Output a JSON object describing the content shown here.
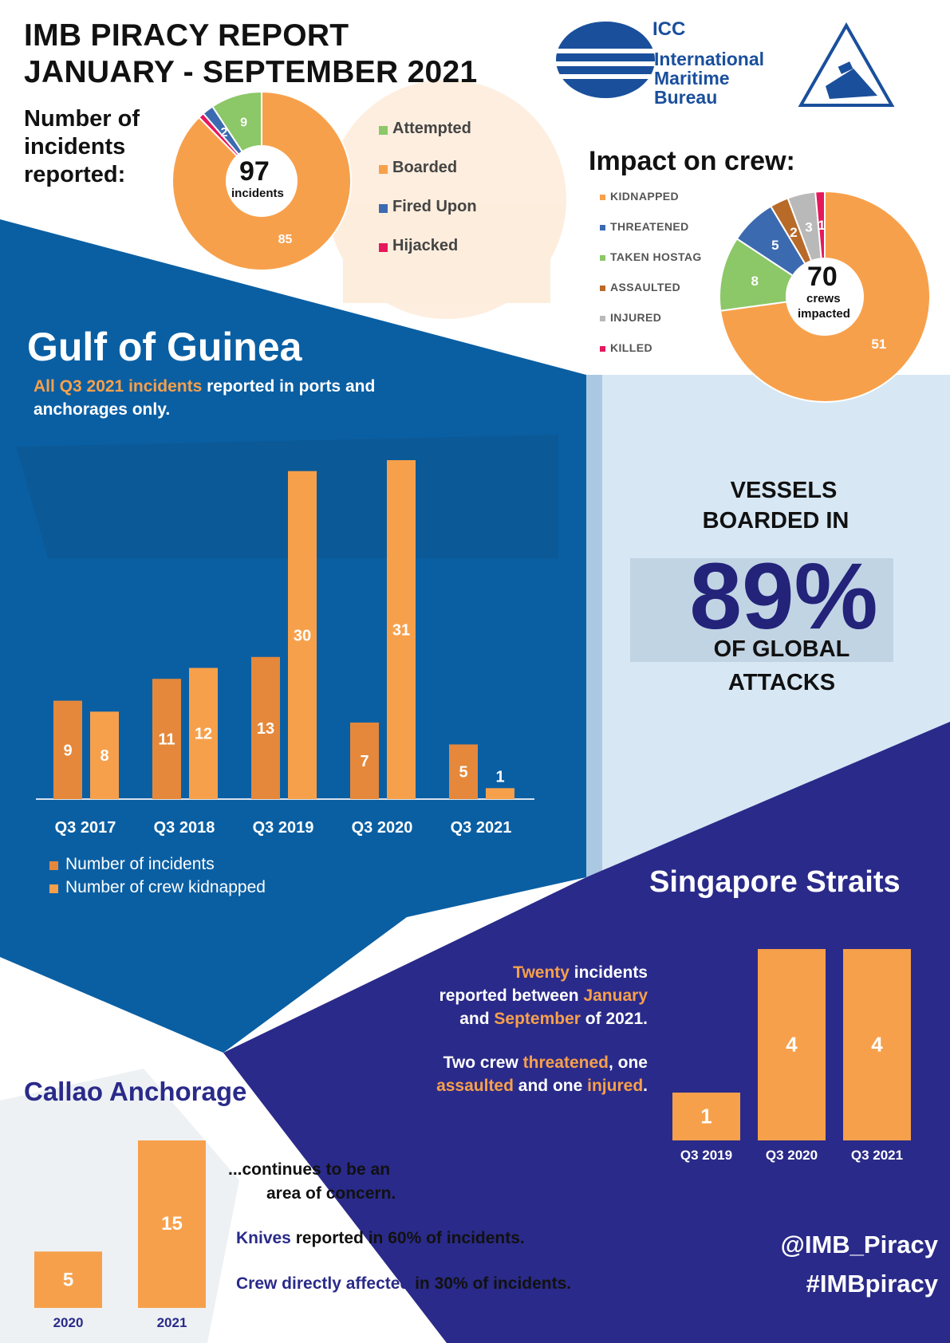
{
  "header": {
    "title_line1": "IMB PIRACY REPORT",
    "title_line2": "JANUARY - SEPTEMBER 2021",
    "incidents_label": "Number of incidents reported:"
  },
  "logo": {
    "org_short": "ICC",
    "org_line1": "International",
    "org_line2": "Maritime",
    "org_line3": "Bureau"
  },
  "colors": {
    "orange": "#f7a04b",
    "dark_orange": "#e5883b",
    "blue": "#0a5fa3",
    "navy": "#2a2a8a",
    "green": "#8cc768",
    "red": "#e6185c",
    "slate_blue": "#3c6ab1",
    "brown": "#b86a29",
    "grey": "#b9b9b9"
  },
  "chart_data": [
    {
      "type": "pie",
      "categories": [
        "Attempted",
        "Boarded",
        "Fired Upon",
        "Hijacked"
      ],
      "values": [
        9,
        85,
        2,
        1
      ],
      "value_labels": [
        "9",
        "85",
        "2",
        ""
      ],
      "center_value": "97",
      "center_label": "incidents",
      "legend": "right"
    },
    {
      "type": "pie",
      "title": "Impact on crew:",
      "categories": [
        "KIDNAPPED",
        "THREATENED",
        "TAKEN HOSTAGE",
        "ASSAULTED",
        "INJURED",
        "KILLED"
      ],
      "legend_text": [
        "KIDNAPPED",
        "THREATENED",
        "TAKEN HOSTAG",
        "ASSAULTED",
        "INJURED",
        "KILLED"
      ],
      "values": [
        51,
        5,
        8,
        2,
        3,
        1
      ],
      "center_value": "70",
      "center_label_line1": "crews",
      "center_label_line2": "impacted",
      "legend": "left"
    },
    {
      "type": "bar",
      "title": "Gulf of Guinea",
      "categories": [
        "Q3 2017",
        "Q3 2018",
        "Q3 2019",
        "Q3 2020",
        "Q3 2021"
      ],
      "series": [
        {
          "name": "Number of incidents",
          "values": [
            9,
            11,
            13,
            7,
            5
          ]
        },
        {
          "name": "Number of crew kidnapped",
          "values": [
            8,
            12,
            30,
            31,
            1
          ]
        }
      ],
      "ylim": [
        0,
        31
      ],
      "grid": false,
      "legend": "bottom-left"
    },
    {
      "type": "bar",
      "title": "Singapore Straits",
      "categories": [
        "Q3 2019",
        "Q3 2020",
        "Q3 2021"
      ],
      "values": [
        1,
        4,
        4
      ],
      "ylim": [
        0,
        4
      ]
    },
    {
      "type": "bar",
      "title": "Callao Anchorage",
      "categories": [
        "2020",
        "2021"
      ],
      "values": [
        5,
        15
      ],
      "ylim": [
        0,
        15
      ]
    }
  ],
  "guinea": {
    "subtitle_highlight": "All Q3 2021 incidents",
    "subtitle_rest": " reported in ports and",
    "subtitle_line2": "anchorages only."
  },
  "vessels": {
    "line1": "VESSELS",
    "line2": "BOARDED IN",
    "percent": "89%",
    "line3": "OF GLOBAL",
    "line4": "ATTACKS"
  },
  "singapore": {
    "p1_a": "Twenty",
    "p1_b": " incidents",
    "p1_c": "reported between ",
    "p1_d": "January",
    "p1_e": "and ",
    "p1_f": "September",
    "p1_g": " of 2021.",
    "p2_a": "Two crew ",
    "p2_b": "threatened",
    "p2_c": ", one",
    "p2_d": "assaulted",
    "p2_e": " and one ",
    "p2_f": "injured",
    "p2_g": "."
  },
  "callao": {
    "line1": "...continues to be an",
    "line2": "area of concern.",
    "knives_a": "Knives",
    "knives_b": " reported in 60% of incidents.",
    "crew_a": "Crew directly affected",
    "crew_b": " in 30% of incidents."
  },
  "social": {
    "handle": "@IMB_Piracy",
    "hashtag": "#IMBpiracy"
  }
}
